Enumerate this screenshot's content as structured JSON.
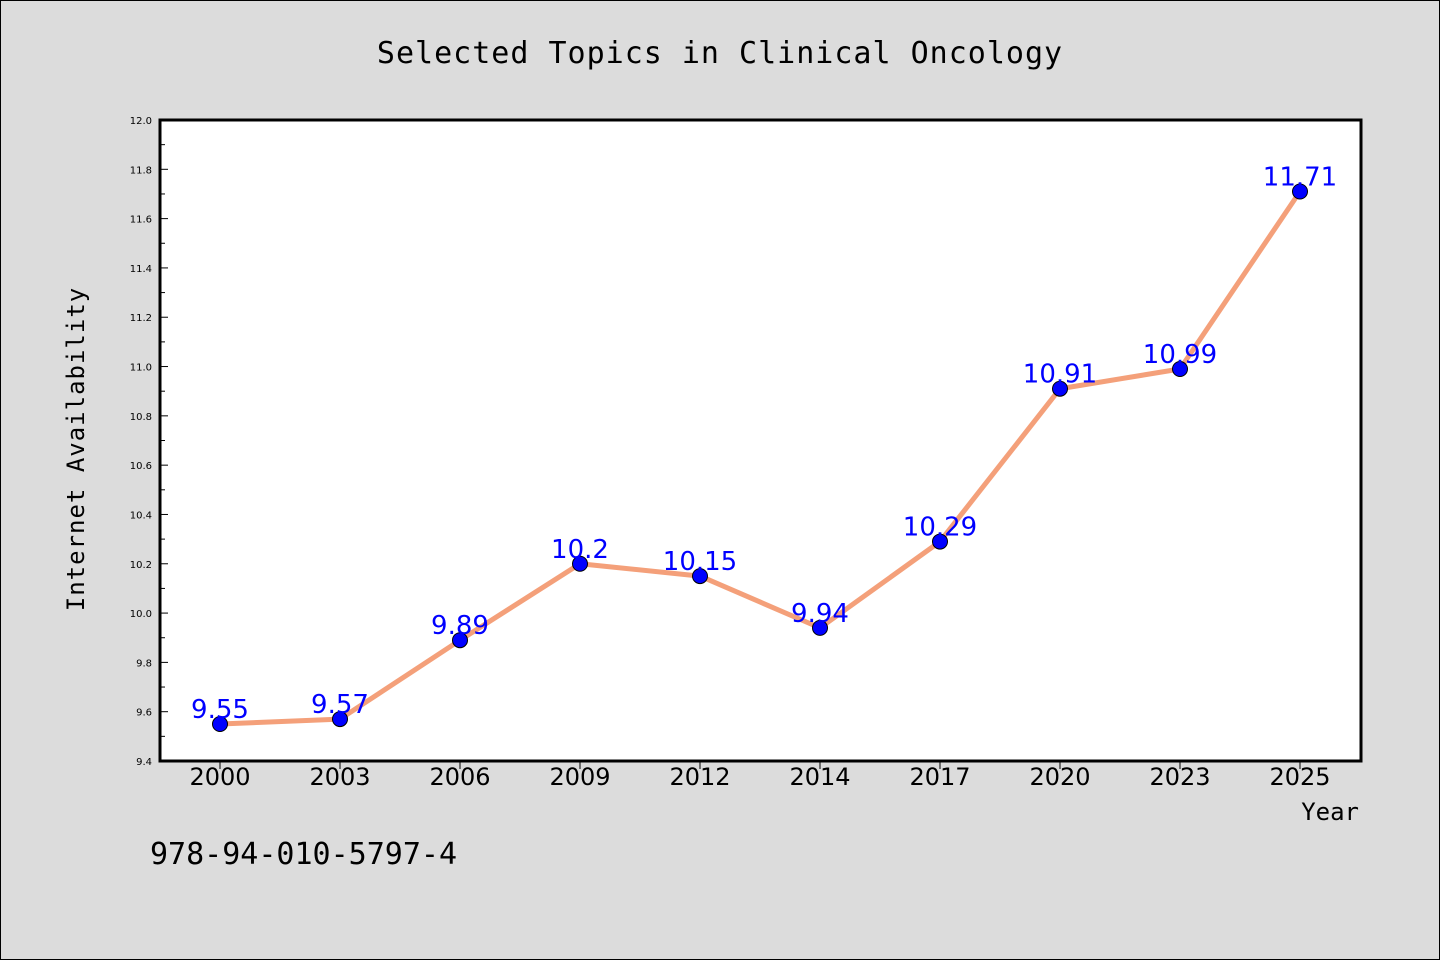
{
  "chart_data": {
    "type": "line",
    "title": "Selected Topics in Clinical Oncology",
    "xlabel": "Year",
    "ylabel": "Internet Availability",
    "categories": [
      "2000",
      "2003",
      "2006",
      "2009",
      "2012",
      "2014",
      "2017",
      "2020",
      "2023",
      "2025"
    ],
    "series": [
      {
        "values": [
          9.55,
          9.57,
          9.89,
          10.2,
          10.15,
          9.94,
          10.29,
          10.91,
          10.99,
          11.71
        ]
      }
    ],
    "data_labels": [
      "9.55",
      "9.57",
      "9.89",
      "10.2",
      "10.15",
      "9.94",
      "10.29",
      "10.91",
      "10.99",
      "11.71"
    ],
    "ylim": [
      9.4,
      12.0
    ],
    "yticks": [
      "9.4",
      "9.6",
      "9.8",
      "10.0",
      "10.2",
      "10.4",
      "10.6",
      "10.8",
      "11.0",
      "11.2",
      "11.4",
      "11.6",
      "11.8",
      "12.0"
    ],
    "grid": false,
    "legend": "none",
    "colors": {
      "line": "#f4a07a",
      "marker": "#0000ff",
      "label": "#0000ff",
      "plot_bg": "#ffffff",
      "page_bg": "#dcdcdc"
    }
  },
  "footer": {
    "isbn": "978-94-010-5797-4"
  }
}
